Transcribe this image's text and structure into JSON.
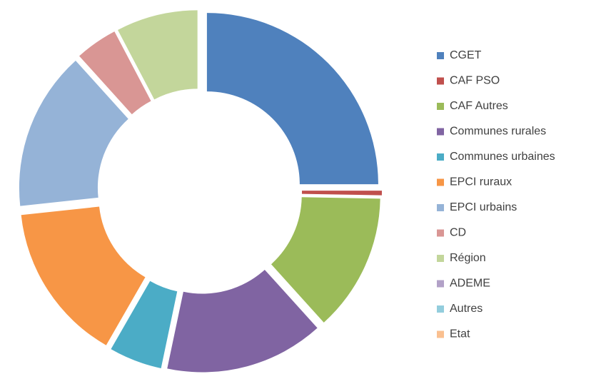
{
  "chart_data": {
    "type": "donut",
    "categories": [
      "CGET",
      "CAF PSO",
      "CAF Autres",
      "Communes rurales",
      "Communes urbaines",
      "EPCI ruraux",
      "EPCI urbains",
      "CD",
      "Région",
      "ADEME",
      "Autres",
      "Etat"
    ],
    "values": [
      25,
      0.3,
      13,
      15,
      5,
      15,
      15,
      4,
      7.7,
      0,
      0,
      0
    ],
    "colors": [
      "#4f81bd",
      "#c0504d",
      "#9bbb59",
      "#8064a2",
      "#4bacc6",
      "#f79646",
      "#95b3d7",
      "#d99694",
      "#c3d69b",
      "#b2a1c7",
      "#93cddd",
      "#fac090"
    ],
    "legend": "right"
  }
}
